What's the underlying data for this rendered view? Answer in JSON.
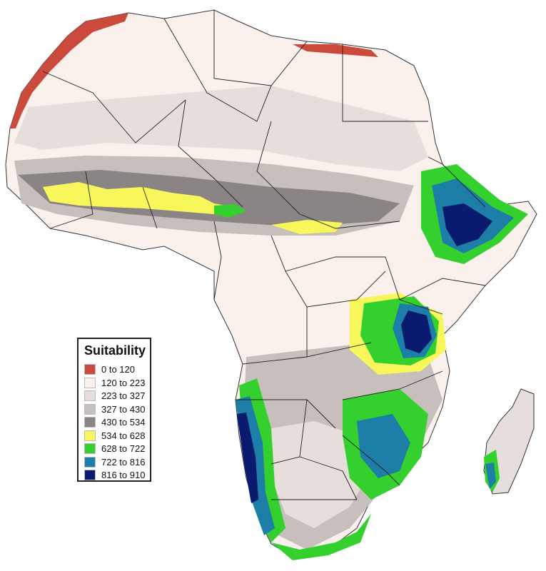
{
  "legend": {
    "title": "Suitability",
    "classes": [
      {
        "label": "0 to 120",
        "color": "#cc4a3c"
      },
      {
        "label": "120 to 223",
        "color": "#fbf1ec"
      },
      {
        "label": "223 to 327",
        "color": "#e6deda"
      },
      {
        "label": "327 to 430",
        "color": "#c7bfbc"
      },
      {
        "label": "430 to 534",
        "color": "#8a8584"
      },
      {
        "label": "534 to 628",
        "color": "#f7f75b"
      },
      {
        "label": "628 to 722",
        "color": "#34d12e"
      },
      {
        "label": "722 to 816",
        "color": "#1d7ea8"
      },
      {
        "label": "816 to 910",
        "color": "#0a1a6e"
      }
    ]
  },
  "colors": {
    "border": "#222222",
    "background": "#ffffff"
  }
}
